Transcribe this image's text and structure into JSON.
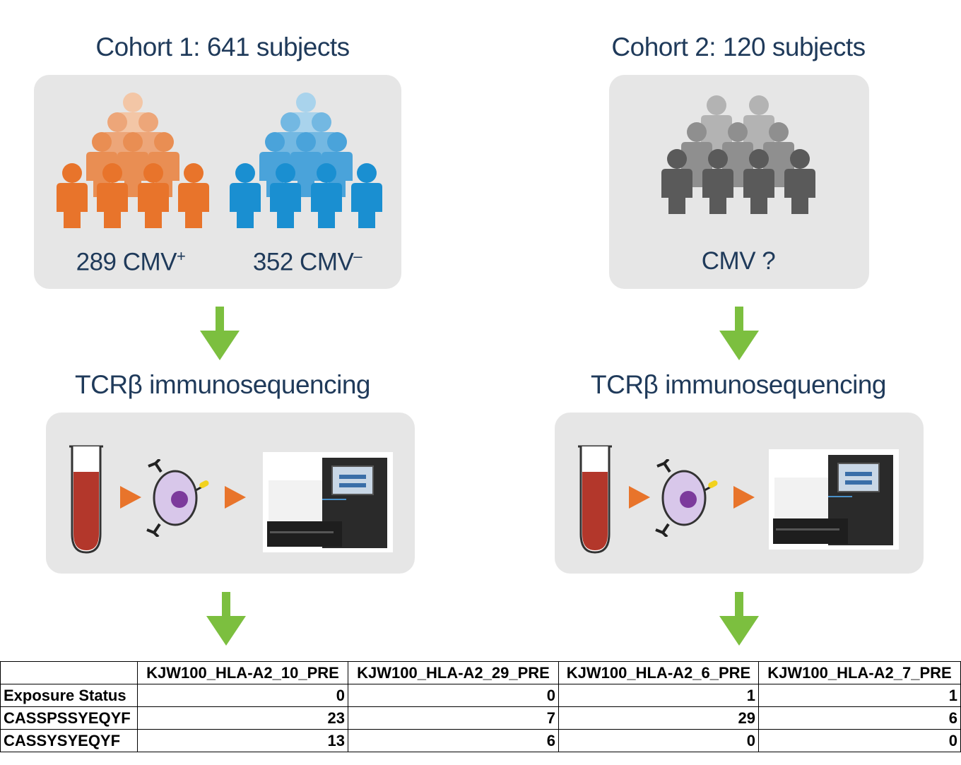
{
  "cohort1": {
    "title": "Cohort 1: 641 subjects",
    "pos_count": "289 CMV",
    "pos_sign": "+",
    "neg_count": "352 CMV",
    "neg_sign": "–",
    "step_title": "TCRβ immunosequencing"
  },
  "cohort2": {
    "title": "Cohort 2: 120 subjects",
    "status": "CMV ?",
    "step_title": "TCRβ immunosequencing"
  },
  "colors": {
    "cmv_pos": "#e8742b",
    "cmv_neg": "#1a8fd1",
    "unknown": "#5a5a5a",
    "arrow": "#7cbf3f",
    "panel": "#e6e6e6",
    "title_text": "#1f3a5a"
  },
  "icons": [
    "people-group-icon",
    "blood-tube-icon",
    "t-cell-icon",
    "sequencer-icon",
    "down-arrow-icon",
    "right-triangle-icon"
  ],
  "table": {
    "columns": [
      "",
      "KJW100_HLA-A2_10_PRE",
      "KJW100_HLA-A2_29_PRE",
      "KJW100_HLA-A2_6_PRE",
      "KJW100_HLA-A2_7_PRE"
    ],
    "rows": [
      {
        "label": "Exposure Status",
        "values": [
          "0",
          "0",
          "1",
          "1"
        ]
      },
      {
        "label": "CASSPSSYEQYF",
        "values": [
          "23",
          "7",
          "29",
          "6"
        ]
      },
      {
        "label": "CASSYSYEQYF",
        "values": [
          "13",
          "6",
          "0",
          "0"
        ]
      }
    ]
  }
}
